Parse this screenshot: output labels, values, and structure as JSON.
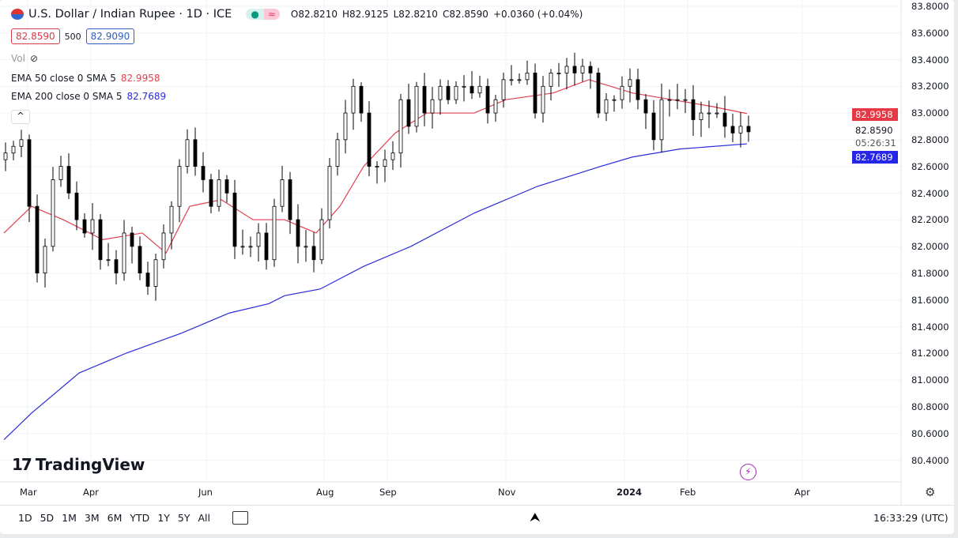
{
  "header": {
    "symbol": "U.S. Dollar / Indian Rupee · 1D · ICE",
    "open": "O82.8210",
    "high": "H82.9125",
    "low": "L82.8210",
    "close": "C82.8590",
    "change": "+0.0360 (+0.04%)",
    "sell": "82.8590",
    "spread": "500",
    "buy": "82.9090"
  },
  "indicators": {
    "vol": "Vol",
    "ema50": {
      "label": "EMA 50 close 0 SMA 5",
      "value": "82.9958",
      "color": "#e0404e"
    },
    "ema200": {
      "label": "EMA 200 close 0 SMA 5",
      "value": "82.7689",
      "color": "#2b2bd9"
    }
  },
  "price_axis": {
    "ticks": [
      "83.8000",
      "83.6000",
      "83.4000",
      "83.2000",
      "83.0000",
      "82.8000",
      "82.6000",
      "82.4000",
      "82.2000",
      "82.0000",
      "81.8000",
      "81.6000",
      "81.4000",
      "81.2000",
      "81.0000",
      "80.8000",
      "80.6000",
      "80.4000"
    ],
    "last_price": "82.8590",
    "countdown": "05:26:31"
  },
  "time_axis": [
    "Mar",
    "Apr",
    "Jun",
    "Aug",
    "Sep",
    "Nov",
    "2024",
    "Feb",
    "Apr"
  ],
  "logo": "TradingView",
  "ranges": [
    "1D",
    "5D",
    "1M",
    "3M",
    "6M",
    "YTD",
    "1Y",
    "5Y",
    "All"
  ],
  "clock": "16:33:29 (UTC)",
  "chart_data": {
    "type": "candlestick",
    "ylim": [
      80.4,
      83.8
    ],
    "closes": [
      82.7,
      82.75,
      82.8,
      82.3,
      81.8,
      82.0,
      82.5,
      82.6,
      82.4,
      82.2,
      82.1,
      82.2,
      81.9,
      81.9,
      81.8,
      82.1,
      82.0,
      81.8,
      81.7,
      81.9,
      82.1,
      82.3,
      82.6,
      82.8,
      82.6,
      82.5,
      82.3,
      82.5,
      82.4,
      82.0,
      82.0,
      82.0,
      82.1,
      81.9,
      82.3,
      82.5,
      82.2,
      82.0,
      82.0,
      81.9,
      82.2,
      82.6,
      82.8,
      83.0,
      83.2,
      83.0,
      82.6,
      82.6,
      82.65,
      82.7,
      83.1,
      82.9,
      83.2,
      83.0,
      83.1,
      83.2,
      83.1,
      83.2,
      83.2,
      83.15,
      83.2,
      83.0,
      83.1,
      83.25,
      83.25,
      83.25,
      83.3,
      83.0,
      83.2,
      83.3,
      83.3,
      83.35,
      83.3,
      83.35,
      83.3,
      83.0,
      83.1,
      83.1,
      83.2,
      83.25,
      83.1,
      83.0,
      82.8,
      83.1,
      83.1,
      83.1,
      83.1,
      82.95,
      83.0,
      83.0,
      83.0,
      82.9,
      82.85,
      82.9,
      82.859
    ],
    "ema50": [
      [
        0,
        82.1
      ],
      [
        3.5,
        82.3
      ],
      [
        7.5,
        82.2
      ],
      [
        12.5,
        82.05
      ],
      [
        17.5,
        82.1
      ],
      [
        20.5,
        81.95
      ],
      [
        23.5,
        82.3
      ],
      [
        27.5,
        82.35
      ],
      [
        31.5,
        82.2
      ],
      [
        35.5,
        82.2
      ],
      [
        39.5,
        82.1
      ],
      [
        42.5,
        82.3
      ],
      [
        45.5,
        82.6
      ],
      [
        49.5,
        82.85
      ],
      [
        53.5,
        83.0
      ],
      [
        59.5,
        83.0
      ],
      [
        63.5,
        83.1
      ],
      [
        69.5,
        83.15
      ],
      [
        74,
        83.25
      ],
      [
        79.5,
        83.15
      ],
      [
        84.5,
        83.1
      ],
      [
        89.5,
        83.05
      ],
      [
        94,
        82.9958
      ]
    ],
    "ema200": [
      [
        0,
        80.55
      ],
      [
        3.5,
        80.75
      ],
      [
        9.5,
        81.05
      ],
      [
        15.5,
        81.2
      ],
      [
        22.5,
        81.35
      ],
      [
        28.5,
        81.5
      ],
      [
        33.5,
        81.57
      ],
      [
        35.5,
        81.63
      ],
      [
        40,
        81.68
      ],
      [
        45.5,
        81.85
      ],
      [
        51.5,
        82.0
      ],
      [
        59.5,
        82.25
      ],
      [
        67.5,
        82.45
      ],
      [
        75.5,
        82.6
      ],
      [
        79.5,
        82.67
      ],
      [
        85.5,
        82.73
      ],
      [
        94,
        82.7689
      ]
    ]
  }
}
